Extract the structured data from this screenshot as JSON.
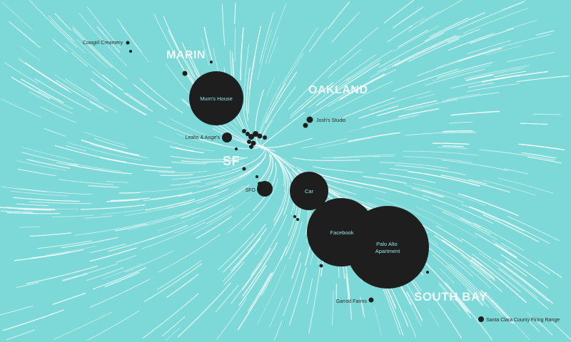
{
  "colors": {
    "water": "#7dd8d8",
    "flow": "#ffffff",
    "location": "#1e1e1e",
    "inside_label": "#8fe3e3"
  },
  "regions": {
    "marin": "MARIN",
    "oakland": "OAKLAND",
    "sf": "SF",
    "south_bay": "SOUTH BAY"
  },
  "places": {
    "cowgirl_creamery": "Cowgirl Creamery",
    "moms_house": "Mum's House",
    "josh_studio": "Josh's Studio",
    "leahs_anges": "Leahs & Ange's",
    "sfo": "SFO",
    "car": "Car",
    "facebook": "Facebook",
    "palo_alto_apartment": "Palo Alto Apartment",
    "garrod_farms": "Garrod Farms",
    "santa_clara_range": "Santa Clara County Firing Range"
  }
}
